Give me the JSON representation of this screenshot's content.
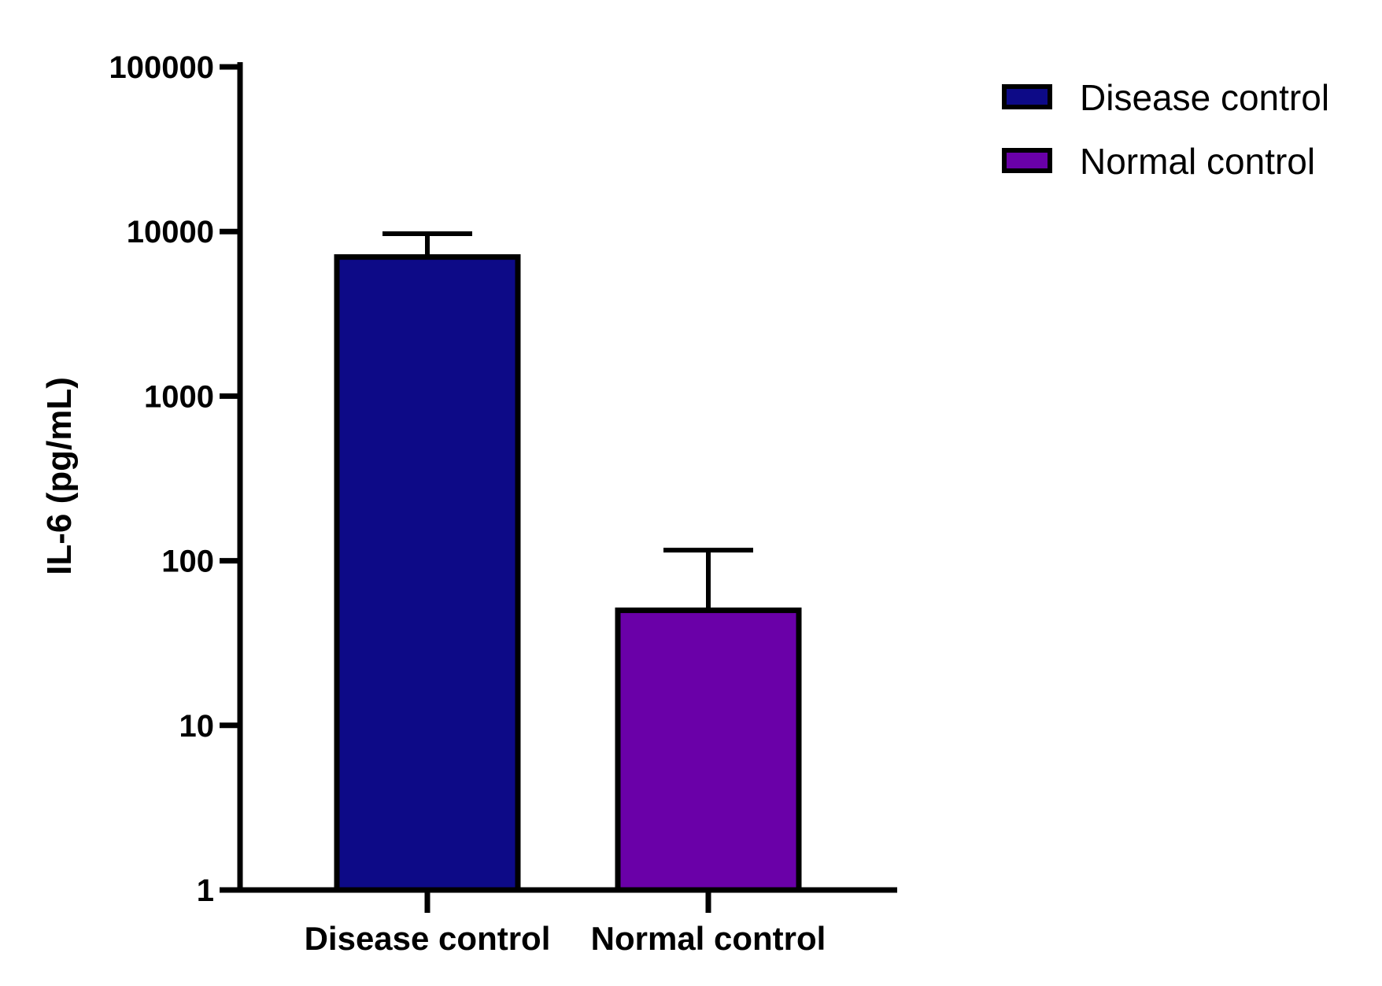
{
  "chart_data": {
    "type": "bar",
    "categories": [
      "Disease control",
      "Normal control"
    ],
    "values": [
      7000,
      50
    ],
    "error_upper": [
      9700,
      116
    ],
    "ylabel": "IL-6 (pg/mL)",
    "xlabel": "",
    "yscale": "log",
    "ylim": [
      1,
      100000
    ],
    "yticks": [
      1,
      10,
      100,
      1000,
      10000,
      100000
    ],
    "ytick_labels": [
      "1",
      "10",
      "100",
      "1000",
      "10000",
      "100000"
    ],
    "legend": {
      "placement": "top-right",
      "entries": [
        {
          "label": "Disease control",
          "color": "#0d0a87"
        },
        {
          "label": "Normal control",
          "color": "#6a00a8"
        }
      ]
    },
    "colors": [
      "#0d0a87",
      "#6a00a8"
    ],
    "grid": false
  }
}
